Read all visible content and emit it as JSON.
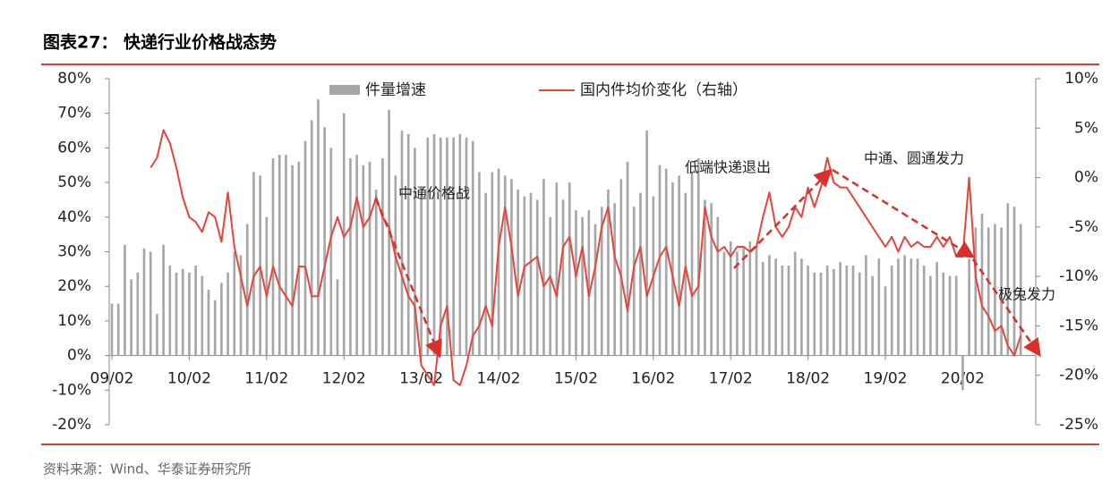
{
  "title": "图表27：  快递行业价格战态势",
  "source": "资料来源：Wind、华泰证券研究所",
  "chart_data": {
    "type": "bar-line",
    "categories": [
      "09/02",
      null,
      null,
      null,
      null,
      null,
      null,
      null,
      null,
      null,
      null,
      null,
      "10/02",
      null,
      null,
      null,
      null,
      null,
      null,
      null,
      null,
      null,
      null,
      null,
      "11/02",
      null,
      null,
      null,
      null,
      null,
      null,
      null,
      null,
      null,
      null,
      null,
      "12/02",
      null,
      null,
      null,
      null,
      null,
      null,
      null,
      null,
      null,
      null,
      null,
      "13/02",
      null,
      null,
      null,
      null,
      null,
      null,
      null,
      null,
      null,
      null,
      null,
      "14/02",
      null,
      null,
      null,
      null,
      null,
      null,
      null,
      null,
      null,
      null,
      null,
      "15/02",
      null,
      null,
      null,
      null,
      null,
      null,
      null,
      null,
      null,
      null,
      null,
      "16/02",
      null,
      null,
      null,
      null,
      null,
      null,
      null,
      null,
      null,
      null,
      null,
      "17/02",
      null,
      null,
      null,
      null,
      null,
      null,
      null,
      null,
      null,
      null,
      null,
      "18/02",
      null,
      null,
      null,
      null,
      null,
      null,
      null,
      null,
      null,
      null,
      null,
      "19/02",
      null,
      null,
      null,
      null,
      null,
      null,
      null,
      null,
      null,
      null,
      null,
      "20/02",
      null,
      null,
      null,
      null,
      null,
      null,
      null,
      null,
      null
    ],
    "series": [
      {
        "name": "件量增速",
        "color": "#a6a6a6",
        "type": "bar",
        "values": [
          15,
          15,
          32,
          22,
          24,
          31,
          30,
          12,
          32,
          26,
          24,
          25,
          24,
          26,
          23,
          19,
          16,
          21,
          24,
          30,
          29,
          38,
          53,
          52,
          40,
          57,
          58,
          58,
          55,
          56,
          62,
          68,
          74,
          66,
          60,
          22,
          70,
          57,
          58,
          55,
          56,
          48,
          57,
          71,
          52,
          65,
          64,
          60,
          47,
          63,
          64,
          63,
          63,
          63,
          64,
          63,
          62,
          53,
          47,
          53,
          54,
          52,
          51,
          48,
          46,
          47,
          45,
          51,
          40,
          50,
          45,
          50,
          42,
          40,
          42,
          38,
          43,
          48,
          44,
          51,
          56,
          43,
          47,
          65,
          46,
          55,
          54,
          50,
          52,
          47,
          53,
          57,
          45,
          44,
          40,
          30,
          33,
          30,
          31,
          33,
          32,
          27,
          29,
          28,
          26,
          26,
          30,
          28,
          26,
          24,
          24,
          26,
          25,
          27,
          26,
          26,
          24,
          29,
          23,
          28,
          20,
          26,
          28,
          29,
          28,
          28,
          26,
          23,
          27,
          24,
          23,
          23,
          -10,
          28,
          37,
          41,
          37,
          38,
          37,
          44,
          43,
          38
        ]
      },
      {
        "name": "国内件均价变化（右轴）",
        "color": "#e8443a",
        "type": "line",
        "axis": "y2",
        "values": [
          null,
          null,
          null,
          null,
          null,
          null,
          1,
          2,
          4.8,
          3.5,
          1,
          -2,
          -4,
          -4.5,
          -5.5,
          -3.5,
          -4,
          -6.5,
          -1.5,
          -7,
          -10,
          -13,
          -10,
          -9,
          -12,
          -9,
          -11,
          -12,
          -13,
          -9,
          -9,
          -12,
          -12,
          -9,
          -6,
          -4,
          -6,
          -5,
          -2,
          -5,
          -4,
          -2,
          -4,
          -5,
          -8,
          -10,
          -12,
          -13,
          -19,
          -20,
          -21,
          -15,
          -13,
          -20.5,
          -21,
          -19,
          -16,
          -15,
          -13,
          -15,
          -7,
          -3,
          -7,
          -12,
          -9,
          -8.5,
          -8,
          -11,
          -10,
          -12,
          -7,
          -6,
          -10,
          -7,
          -12,
          -9,
          -5,
          -3,
          -8,
          -10,
          -13.5,
          -9,
          -7,
          -12,
          -10,
          -8,
          -7,
          -10,
          -13,
          -9,
          -12,
          -11,
          -3,
          -6,
          -7.5,
          -7,
          -8,
          -7,
          -7,
          -7.5,
          -7,
          -4,
          -1.5,
          -5,
          -6,
          -5,
          -3,
          -4,
          -1,
          -3,
          -1,
          2,
          -0.5,
          -1,
          -1,
          -2,
          -3,
          -4,
          -5,
          -6,
          -7,
          -6,
          -7.5,
          -6,
          -7,
          -6.5,
          -7,
          -7,
          -6,
          -7,
          -6,
          -8,
          -8,
          0,
          -10,
          -13,
          -14,
          -15.5,
          -15,
          -17,
          -18,
          -16
        ]
      }
    ],
    "ylim": [
      -20,
      80
    ],
    "yticks": [
      {
        "value": 80,
        "label": "80%"
      },
      {
        "value": 70,
        "label": "70%"
      },
      {
        "value": 60,
        "label": "60%"
      },
      {
        "value": 50,
        "label": "50%"
      },
      {
        "value": 40,
        "label": "40%"
      },
      {
        "value": 30,
        "label": "30%"
      },
      {
        "value": 20,
        "label": "20%"
      },
      {
        "value": 10,
        "label": "10%"
      },
      {
        "value": 0,
        "label": "0%"
      },
      {
        "value": -10,
        "label": "-10%"
      },
      {
        "value": -20,
        "label": "-20%"
      }
    ],
    "y2lim": [
      -25,
      10
    ],
    "y2ticks": [
      {
        "value": 10,
        "label": "10%"
      },
      {
        "value": 5,
        "label": "5%"
      },
      {
        "value": 0,
        "label": "0%"
      },
      {
        "value": -5,
        "label": "-5%"
      },
      {
        "value": -10,
        "label": "-10%"
      },
      {
        "value": -15,
        "label": "-15%"
      },
      {
        "value": -20,
        "label": "-20%"
      },
      {
        "value": -25,
        "label": "-25%"
      }
    ],
    "annotations": [
      "中通价格战",
      "低端快递退出",
      "中通、圆通发力",
      "极兔发力"
    ]
  }
}
